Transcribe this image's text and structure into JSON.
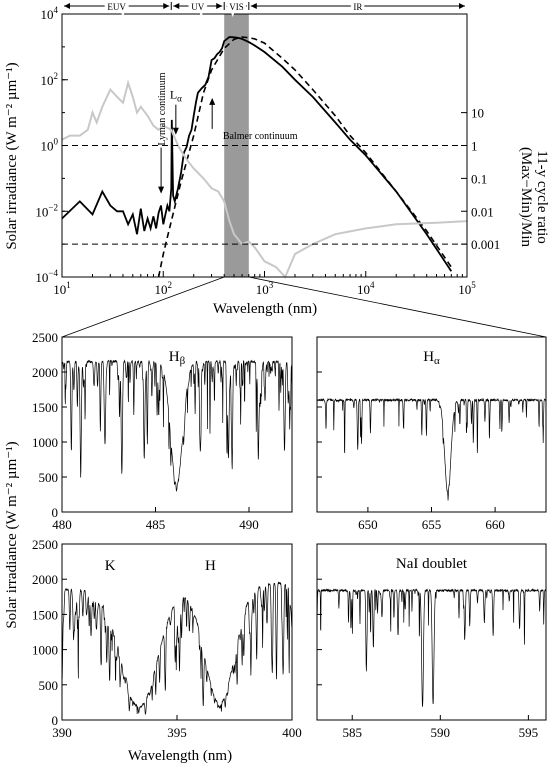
{
  "chart_data": [
    {
      "type": "line",
      "ylabel": "Solar irradiance (W m⁻² µm⁻¹)",
      "y2label_line1": "11-y cycle ratio",
      "y2label_line2": "(Max−Min)/Min",
      "xlabel": "Wavelength (nm)",
      "xscale": "log",
      "yscale": "log",
      "xlim": [
        10,
        100000
      ],
      "ylim": [
        0.0001,
        10000
      ],
      "x_ticks": [
        {
          "v": 10,
          "b": "10",
          "e": "1"
        },
        {
          "v": 100,
          "b": "10",
          "e": "2"
        },
        {
          "v": 1000,
          "b": "10",
          "e": "3"
        },
        {
          "v": 10000,
          "b": "10",
          "e": "4"
        },
        {
          "v": 100000,
          "b": "10",
          "e": "5"
        }
      ],
      "y_ticks": [
        {
          "v": 0.0001,
          "b": "10",
          "e": "−4"
        },
        {
          "v": 0.01,
          "b": "10",
          "e": "−2"
        },
        {
          "v": 1,
          "b": "10",
          "e": "0"
        },
        {
          "v": 100,
          "b": "10",
          "e": "2"
        },
        {
          "v": 10000,
          "b": "10",
          "e": "4"
        }
      ],
      "y2_ticks": [
        {
          "v": 10,
          "label": "10"
        },
        {
          "v": 1,
          "label": "1"
        },
        {
          "v": 0.1,
          "label": "0.1"
        },
        {
          "v": 0.01,
          "label": "0.01"
        },
        {
          "v": 0.001,
          "label": "0.001"
        }
      ],
      "y2_ratio_to_left_factor": 1,
      "bands": [
        {
          "label": "EUV",
          "from": 10,
          "to": 120
        },
        {
          "label": "UV",
          "from": 120,
          "to": 400
        },
        {
          "label": "VIS",
          "from": 400,
          "to": 700
        },
        {
          "label": "IR",
          "from": 700,
          "to": 100000
        }
      ],
      "vis_band": [
        400,
        700
      ],
      "hlines_ratio": [
        1,
        0.001
      ],
      "annotations": [
        {
          "text": "Lyman continuum",
          "x": 91,
          "y": 0.03
        },
        {
          "text": "L",
          "sub": "α",
          "x": 121.6,
          "y": 0.3
        },
        {
          "text": "Balmer continuum",
          "x": 365,
          "y": 40
        }
      ],
      "series": [
        {
          "name": "",
          "style": "solid-black",
          "x": [
            10,
            15,
            20,
            25,
            30,
            35,
            40,
            45,
            50,
            55,
            60,
            65,
            70,
            75,
            80,
            85,
            90,
            95,
            100,
            105,
            110,
            115,
            120,
            121.6,
            125,
            130,
            140,
            150,
            160,
            170,
            180,
            190,
            200,
            210,
            220,
            240,
            260,
            280,
            300,
            320,
            340,
            360,
            380,
            400,
            450,
            500,
            550,
            600,
            700,
            800,
            1000,
            1500,
            2000,
            3000,
            5000,
            7000,
            10000,
            20000,
            40000,
            70000
          ],
          "y": [
            0.006,
            0.02,
            0.008,
            0.04,
            0.015,
            0.01,
            0.01,
            0.004,
            0.008,
            0.002,
            0.012,
            0.0025,
            0.006,
            0.003,
            0.007,
            0.003,
            0.009,
            0.015,
            0.004,
            0.008,
            0.015,
            0.01,
            0.05,
            6,
            0.03,
            0.02,
            0.05,
            0.15,
            0.6,
            0.9,
            2,
            3,
            8,
            20,
            40,
            55,
            70,
            120,
            400,
            450,
            600,
            700,
            900,
            1500,
            2000,
            1950,
            1880,
            1750,
            1400,
            1100,
            700,
            250,
            100,
            30,
            5,
            1.5,
            0.5,
            0.04,
            0.002,
            0.00015
          ]
        },
        {
          "name": "",
          "style": "dashed-black",
          "x": [
            90,
            100,
            120,
            150,
            200,
            250,
            300,
            400,
            500,
            600,
            700,
            800,
            1000,
            1500,
            2000,
            3000,
            5000,
            7000,
            10000,
            20000,
            40000,
            70000
          ],
          "y": [
            8e-05,
            0.0005,
            0.005,
            0.08,
            2,
            40,
            200,
            900,
            1700,
            2000,
            1900,
            1750,
            1300,
            450,
            200,
            50,
            8,
            2,
            0.6,
            0.04,
            0.0025,
            0.0002
          ]
        },
        {
          "name": "",
          "style": "solid-gray",
          "axis": "ratio",
          "x": [
            10,
            12,
            15,
            18,
            20,
            22,
            25,
            30,
            35,
            40,
            45,
            50,
            55,
            60,
            70,
            80,
            90,
            100,
            120,
            140,
            160,
            180,
            200,
            250,
            300,
            350,
            400,
            450,
            500,
            600,
            700,
            800,
            1000,
            1300,
            1600,
            2000,
            3000,
            5000,
            10000,
            20000,
            50000,
            100000
          ],
          "y": [
            1.5,
            2,
            2,
            3,
            10,
            5,
            15,
            50,
            30,
            20,
            80,
            30,
            10,
            15,
            8,
            4,
            3,
            4,
            3,
            1,
            0.5,
            0.3,
            0.2,
            0.1,
            0.05,
            0.04,
            0.02,
            0.005,
            0.002,
            0.001,
            0.0012,
            0.0008,
            0.0003,
            0.0002,
            0.0001,
            0.0005,
            0.001,
            0.002,
            0.003,
            0.004,
            0.0045,
            0.005
          ]
        }
      ]
    },
    {
      "type": "line",
      "title": "H",
      "title_sub": "β",
      "xlim": [
        480,
        492.3
      ],
      "ylim": [
        0,
        2500
      ],
      "x_ticks": [
        480,
        485,
        490
      ],
      "y_ticks": [
        0,
        500,
        1000,
        1500,
        2000,
        2500
      ],
      "continuum": 2150,
      "lines": [
        {
          "c": 486.13,
          "depth": 0.82,
          "w": 0.45
        },
        {
          "c": 480.5,
          "depth": 0.6,
          "w": 0.04
        },
        {
          "c": 481.0,
          "depth": 0.7,
          "w": 0.05
        },
        {
          "c": 482.3,
          "depth": 0.55,
          "w": 0.05
        },
        {
          "c": 483.2,
          "depth": 0.75,
          "w": 0.05
        },
        {
          "c": 484.4,
          "depth": 0.5,
          "w": 0.04
        },
        {
          "c": 487.4,
          "depth": 0.6,
          "w": 0.05
        },
        {
          "c": 488.9,
          "depth": 0.65,
          "w": 0.05
        },
        {
          "c": 489.1,
          "depth": 0.7,
          "w": 0.04
        },
        {
          "c": 490.5,
          "depth": 0.55,
          "w": 0.04
        },
        {
          "c": 491.9,
          "depth": 0.6,
          "w": 0.05
        }
      ],
      "noise_lines": 160,
      "seed": 11
    },
    {
      "type": "line",
      "title": "H",
      "title_sub": "α",
      "xlim": [
        646,
        664
      ],
      "ylim": [
        0,
        2500
      ],
      "x_ticks": [
        650,
        655,
        660
      ],
      "y_ticks": [
        0,
        500,
        1000,
        1500,
        2000,
        2500
      ],
      "continuum": 1600,
      "lines": [
        {
          "c": 656.28,
          "depth": 0.82,
          "w": 0.35
        },
        {
          "c": 649.2,
          "depth": 0.45,
          "w": 0.05
        },
        {
          "c": 649.5,
          "depth": 0.4,
          "w": 0.04
        },
        {
          "c": 650.2,
          "depth": 0.3,
          "w": 0.04
        },
        {
          "c": 652.8,
          "depth": 0.25,
          "w": 0.04
        },
        {
          "c": 654.6,
          "depth": 0.3,
          "w": 0.04
        },
        {
          "c": 657.8,
          "depth": 0.25,
          "w": 0.04
        },
        {
          "c": 658.3,
          "depth": 0.3,
          "w": 0.04
        },
        {
          "c": 659.2,
          "depth": 0.2,
          "w": 0.04
        },
        {
          "c": 661.1,
          "depth": 0.2,
          "w": 0.04
        }
      ],
      "noise_lines": 55,
      "seed": 23
    },
    {
      "type": "line",
      "labels": [
        {
          "text": "K",
          "x": 393.4
        },
        {
          "text": "H",
          "x": 396.8
        }
      ],
      "xlabel": "Wavelength (nm)",
      "xlim": [
        390,
        400
      ],
      "ylim": [
        0,
        2500
      ],
      "x_ticks": [
        390,
        395,
        400
      ],
      "y_ticks": [
        0,
        500,
        1000,
        1500,
        2000,
        2500
      ],
      "continuum": 1850,
      "continuum_slope": 10,
      "lines": [
        {
          "c": 393.37,
          "depth": 0.9,
          "w": 1.1
        },
        {
          "c": 396.85,
          "depth": 0.88,
          "w": 0.9
        }
      ],
      "noise_lines": 220,
      "noise_depth": 0.75,
      "seed": 37
    },
    {
      "type": "line",
      "title": "NaI doublet",
      "xlim": [
        583,
        596
      ],
      "ylim": [
        0,
        2500
      ],
      "x_ticks": [
        585,
        590,
        595
      ],
      "y_ticks": [
        0,
        500,
        1000,
        1500,
        2000,
        2500
      ],
      "continuum": 1840,
      "lines": [
        {
          "c": 588.99,
          "depth": 0.9,
          "w": 0.07
        },
        {
          "c": 589.59,
          "depth": 0.88,
          "w": 0.07
        },
        {
          "c": 585.8,
          "depth": 0.55,
          "w": 0.04
        },
        {
          "c": 586.2,
          "depth": 0.45,
          "w": 0.04
        },
        {
          "c": 587.6,
          "depth": 0.35,
          "w": 0.04
        },
        {
          "c": 591.4,
          "depth": 0.3,
          "w": 0.04
        },
        {
          "c": 592.5,
          "depth": 0.25,
          "w": 0.04
        },
        {
          "c": 593.0,
          "depth": 0.35,
          "w": 0.04
        },
        {
          "c": 594.5,
          "depth": 0.3,
          "w": 0.04
        }
      ],
      "noise_lines": 60,
      "seed": 51
    }
  ],
  "shared_labels": {
    "lower_ylabel": "Solar irradiance (W m⁻² µm⁻¹)",
    "lower_xlabel": "Wavelength (nm)"
  }
}
